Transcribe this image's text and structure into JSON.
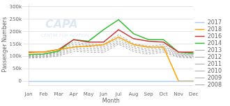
{
  "chart_data": {
    "type": "line",
    "categories": [
      "Jan",
      "Feb",
      "Mar",
      "Apr",
      "May",
      "Jun",
      "Jul",
      "Aug",
      "Sep",
      "Oct",
      "Nov",
      "Dec"
    ],
    "series": [
      {
        "name": "2017",
        "color": "#aaccee",
        "line_style": "solid",
        "values": [
          0,
          0,
          0,
          0,
          0,
          0,
          0,
          0,
          0,
          0,
          0,
          0
        ]
      },
      {
        "name": "2018",
        "color": "#FFA500",
        "line_style": "solid",
        "values": [
          115000,
          118000,
          128000,
          138000,
          142000,
          148000,
          178000,
          148000,
          138000,
          138000,
          2000,
          2000
        ]
      },
      {
        "name": "2016",
        "color": "#cc3333",
        "line_style": "solid",
        "values": [
          118000,
          118000,
          128000,
          168000,
          158000,
          158000,
          208000,
          172000,
          162000,
          158000,
          118000,
          118000
        ]
      },
      {
        "name": "2014",
        "color": "#33bb33",
        "line_style": "solid",
        "values": [
          108000,
          110000,
          122000,
          168000,
          162000,
          208000,
          248000,
          192000,
          168000,
          168000,
          118000,
          112000
        ]
      },
      {
        "name": "2013",
        "color": "#aaaaaa",
        "line_style": "dashed",
        "values": [
          108000,
          110000,
          120000,
          158000,
          150000,
          148000,
          188000,
          152000,
          142000,
          148000,
          112000,
          109000
        ]
      },
      {
        "name": "2012",
        "color": "#aaaaaa",
        "line_style": "dashed",
        "values": [
          106000,
          108000,
          117000,
          150000,
          145000,
          142000,
          180000,
          147000,
          137000,
          142000,
          110000,
          107000
        ]
      },
      {
        "name": "2011",
        "color": "#aaaaaa",
        "line_style": "dashed",
        "values": [
          103000,
          105000,
          114000,
          143000,
          139000,
          137000,
          172000,
          140000,
          130000,
          135000,
          107000,
          104000
        ]
      },
      {
        "name": "2010",
        "color": "#aaaaaa",
        "line_style": "dashed",
        "values": [
          100000,
          102000,
          110000,
          135000,
          132000,
          130000,
          164000,
          134000,
          124000,
          129000,
          104000,
          101000
        ]
      },
      {
        "name": "2009",
        "color": "#aaaaaa",
        "line_style": "dashed",
        "values": [
          97000,
          99000,
          106000,
          128000,
          125000,
          123000,
          157000,
          127000,
          117000,
          123000,
          100000,
          97000
        ]
      },
      {
        "name": "2008",
        "color": "#aaaaaa",
        "line_style": "dashed",
        "values": [
          94000,
          96000,
          102000,
          121000,
          118000,
          116000,
          150000,
          120000,
          110000,
          117000,
          97000,
          94000
        ]
      }
    ],
    "xlabel": "Month",
    "ylabel": "Passenger Numbers",
    "ylim": [
      -15000,
      310000
    ],
    "yticks": [
      0,
      {
        "value": 50000,
        "label": "50k"
      },
      {
        "value": 100000,
        "label": "100k"
      },
      {
        "value": 150000,
        "label": "150k"
      },
      {
        "value": 200000,
        "label": "200k"
      },
      {
        "value": 250000,
        "label": "250k"
      },
      {
        "value": 300000,
        "label": "300k"
      }
    ],
    "grid": true,
    "legend": "right",
    "annotations": [
      "CAPA",
      "CENTRE FOR AVIATION"
    ]
  }
}
